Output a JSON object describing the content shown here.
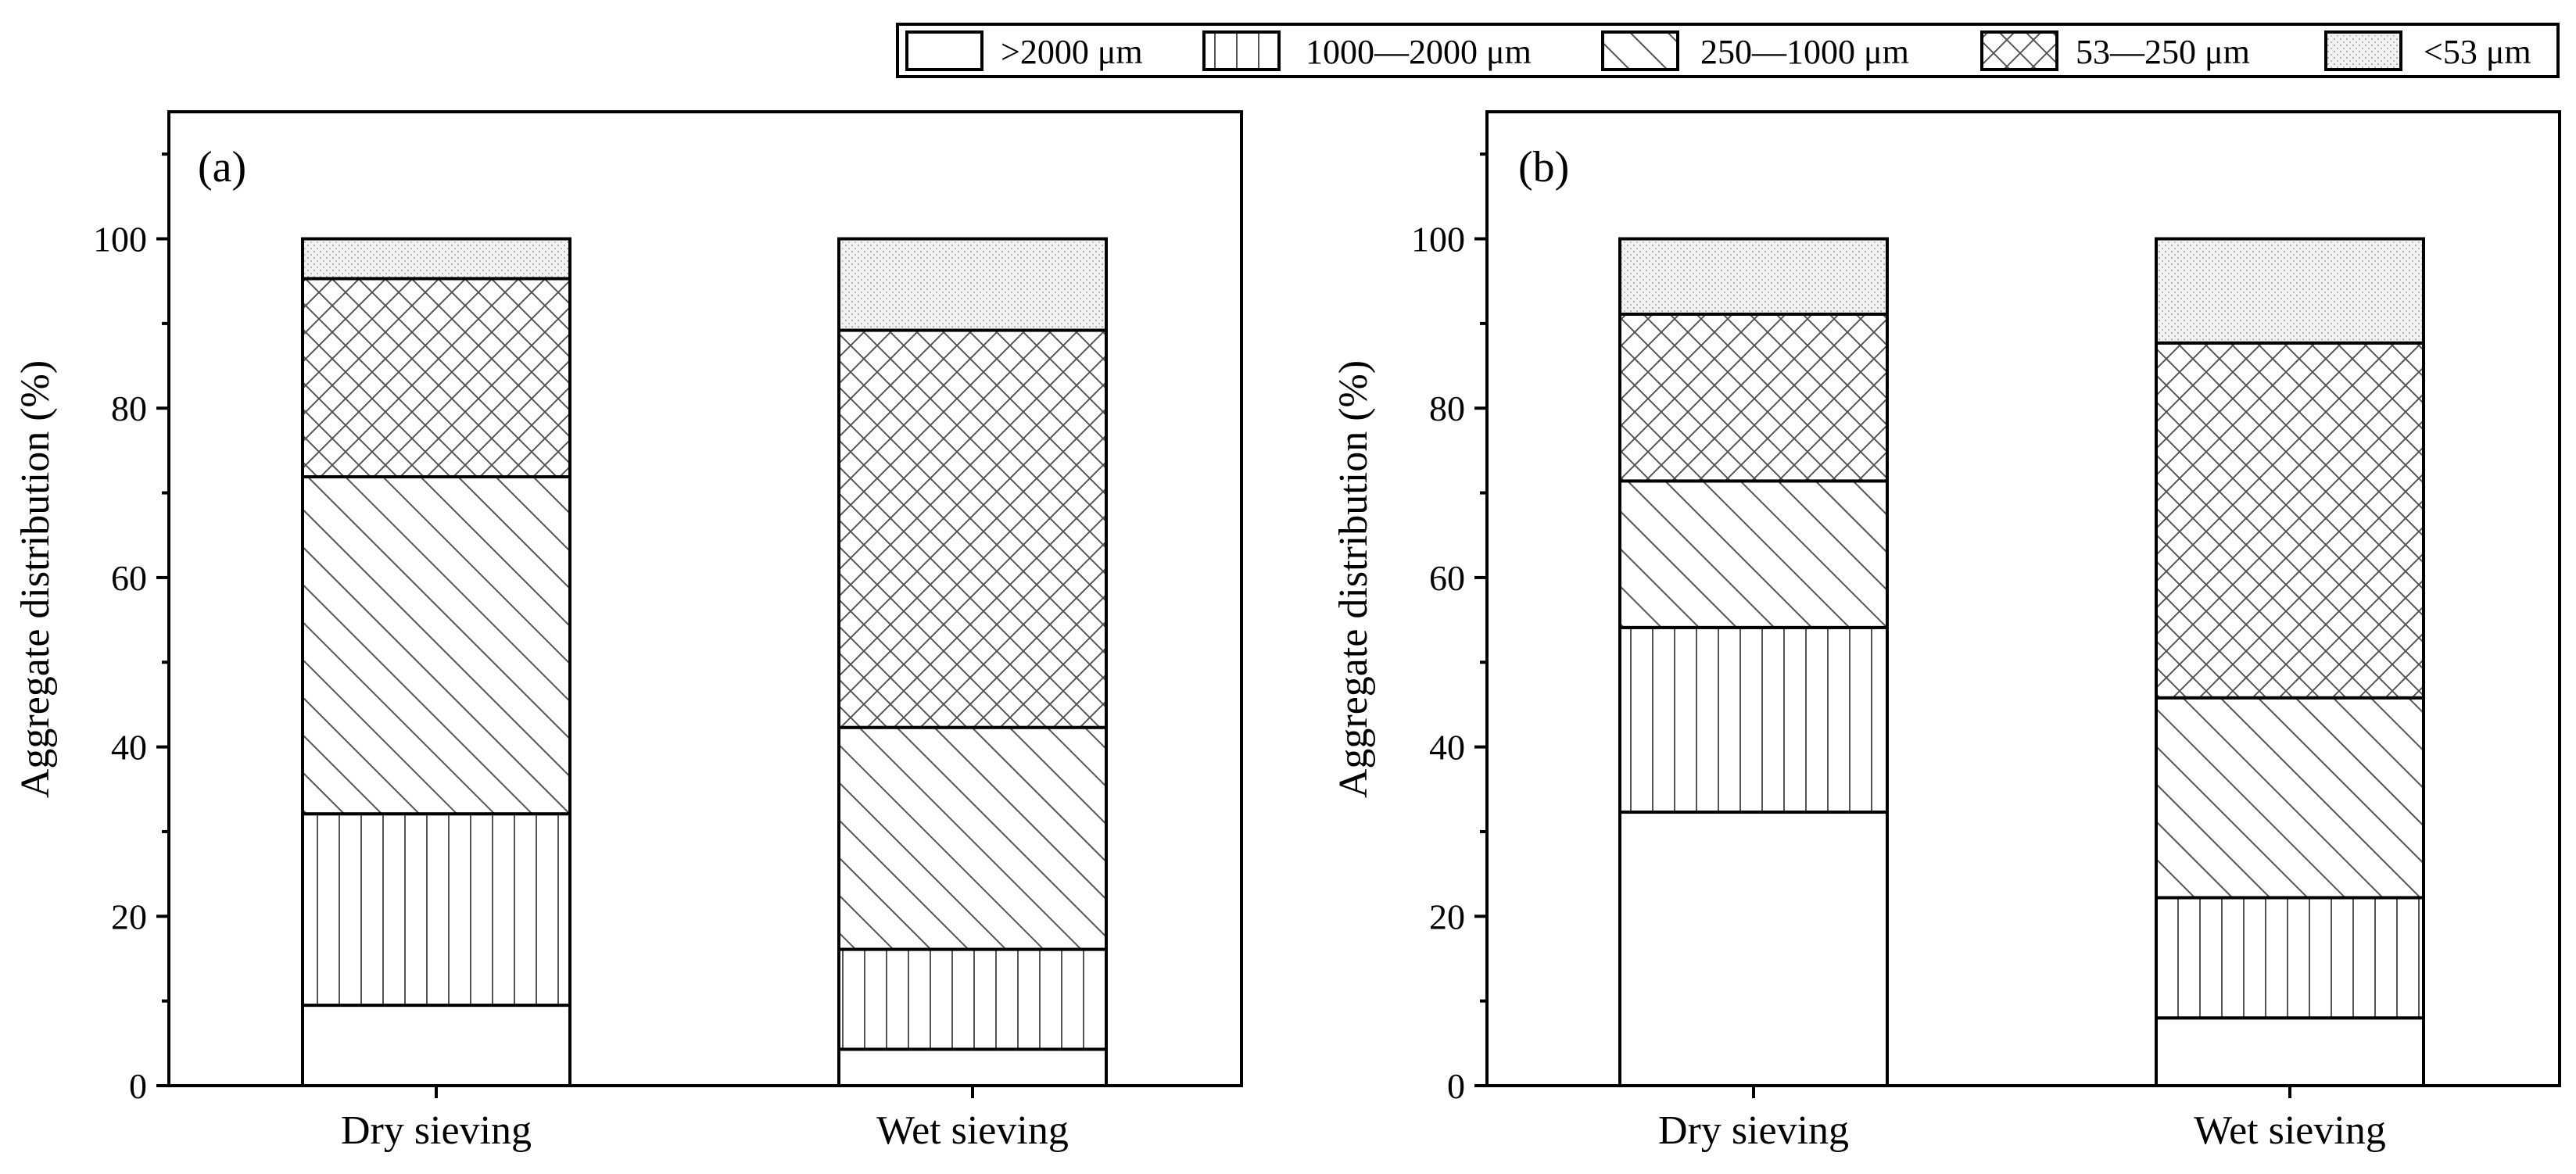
{
  "chart_data": [
    {
      "type": "bar",
      "stacked": true,
      "panel_label": "(a)",
      "ylabel": "Aggregate distribution (%)",
      "xlabel": "",
      "ylim": [
        0,
        115
      ],
      "yticks": [
        0,
        20,
        40,
        60,
        80,
        100
      ],
      "categories": [
        "Dry sieving",
        "Wet sieving"
      ],
      "series": [
        {
          "name": ">2000 μm",
          "values": [
            9.5,
            4.3
          ]
        },
        {
          "name": "1000—2000 μm",
          "values": [
            22.6,
            11.8
          ]
        },
        {
          "name": "250—1000 μm",
          "values": [
            39.8,
            26.2
          ]
        },
        {
          "name": "53—250 μm",
          "values": [
            23.4,
            46.9
          ]
        },
        {
          "name": "<53 μm",
          "values": [
            4.7,
            10.8
          ]
        }
      ]
    },
    {
      "type": "bar",
      "stacked": true,
      "panel_label": "(b)",
      "ylabel": "Aggregate distribution (%)",
      "xlabel": "",
      "ylim": [
        0,
        115
      ],
      "yticks": [
        0,
        20,
        40,
        60,
        80,
        100
      ],
      "categories": [
        "Dry sieving",
        "Wet sieving"
      ],
      "series": [
        {
          "name": ">2000 μm",
          "values": [
            32.3,
            8.0
          ]
        },
        {
          "name": "1000—2000 μm",
          "values": [
            21.8,
            14.2
          ]
        },
        {
          "name": "250—1000 μm",
          "values": [
            17.3,
            23.6
          ]
        },
        {
          "name": "53—250 μm",
          "values": [
            19.7,
            41.9
          ]
        },
        {
          "name": "<53 μm",
          "values": [
            8.9,
            12.3
          ]
        }
      ]
    }
  ],
  "legend": {
    "placement": "top-right",
    "entries": [
      {
        "label": ">2000 μm",
        "pattern": "blank-pattern"
      },
      {
        "label": "1000—2000 μm",
        "pattern": "vertical-lines-pattern"
      },
      {
        "label": "250—1000 μm",
        "pattern": "diagonal-lines-pattern"
      },
      {
        "label": "53—250 μm",
        "pattern": "crosshatch-pattern"
      },
      {
        "label": "<53 μm",
        "pattern": "dotted-fill-pattern"
      }
    ]
  }
}
